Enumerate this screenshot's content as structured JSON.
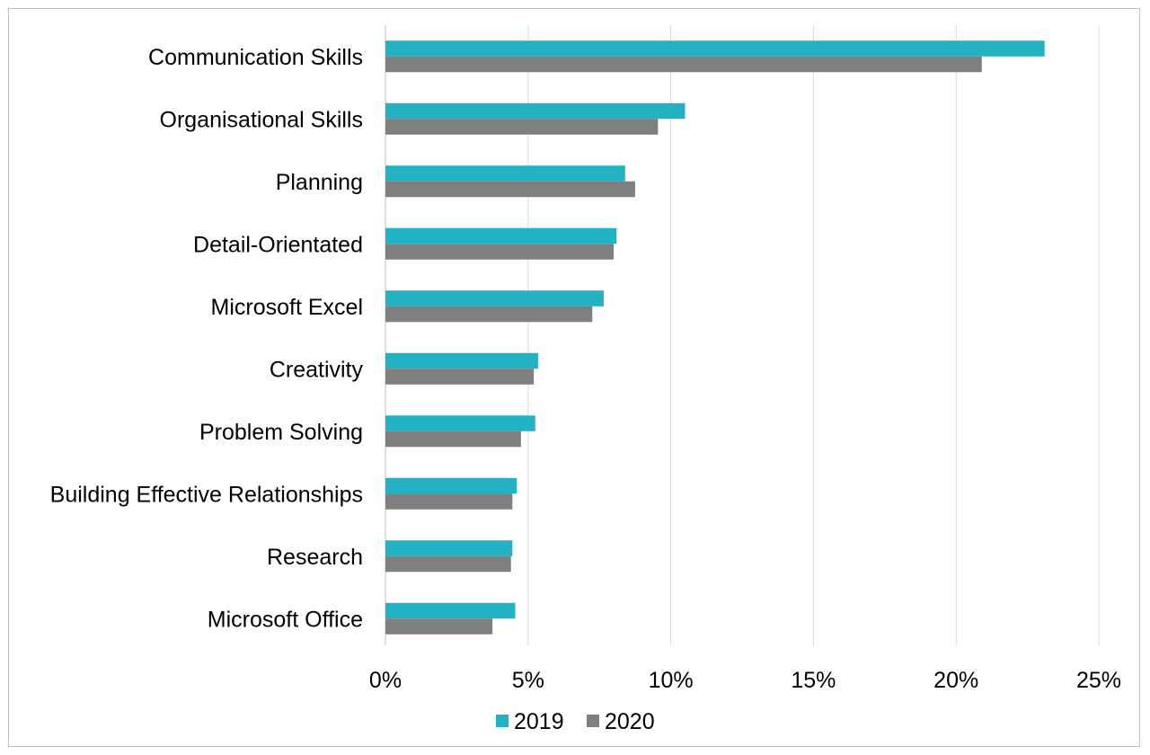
{
  "chart_data": {
    "type": "bar",
    "orientation": "horizontal",
    "categories": [
      "Communication Skills",
      "Organisational Skills",
      "Planning",
      "Detail-Orientated",
      "Microsoft Excel",
      "Creativity",
      "Problem Solving",
      "Building Effective Relationships",
      "Research",
      "Microsoft Office"
    ],
    "series": [
      {
        "name": "2019",
        "color": "#23b1c4",
        "values": [
          23.1,
          10.5,
          8.4,
          8.1,
          7.65,
          5.35,
          5.25,
          4.6,
          4.45,
          4.55
        ]
      },
      {
        "name": "2020",
        "color": "#7f7f7f",
        "values": [
          20.9,
          9.55,
          8.75,
          8.0,
          7.25,
          5.2,
          4.75,
          4.45,
          4.4,
          3.75
        ]
      }
    ],
    "x_ticks": [
      "0%",
      "5%",
      "10%",
      "15%",
      "20%",
      "25%"
    ],
    "xlim": [
      0,
      25
    ],
    "value_unit": "%",
    "grid": "vertical",
    "legend_position": "bottom"
  }
}
